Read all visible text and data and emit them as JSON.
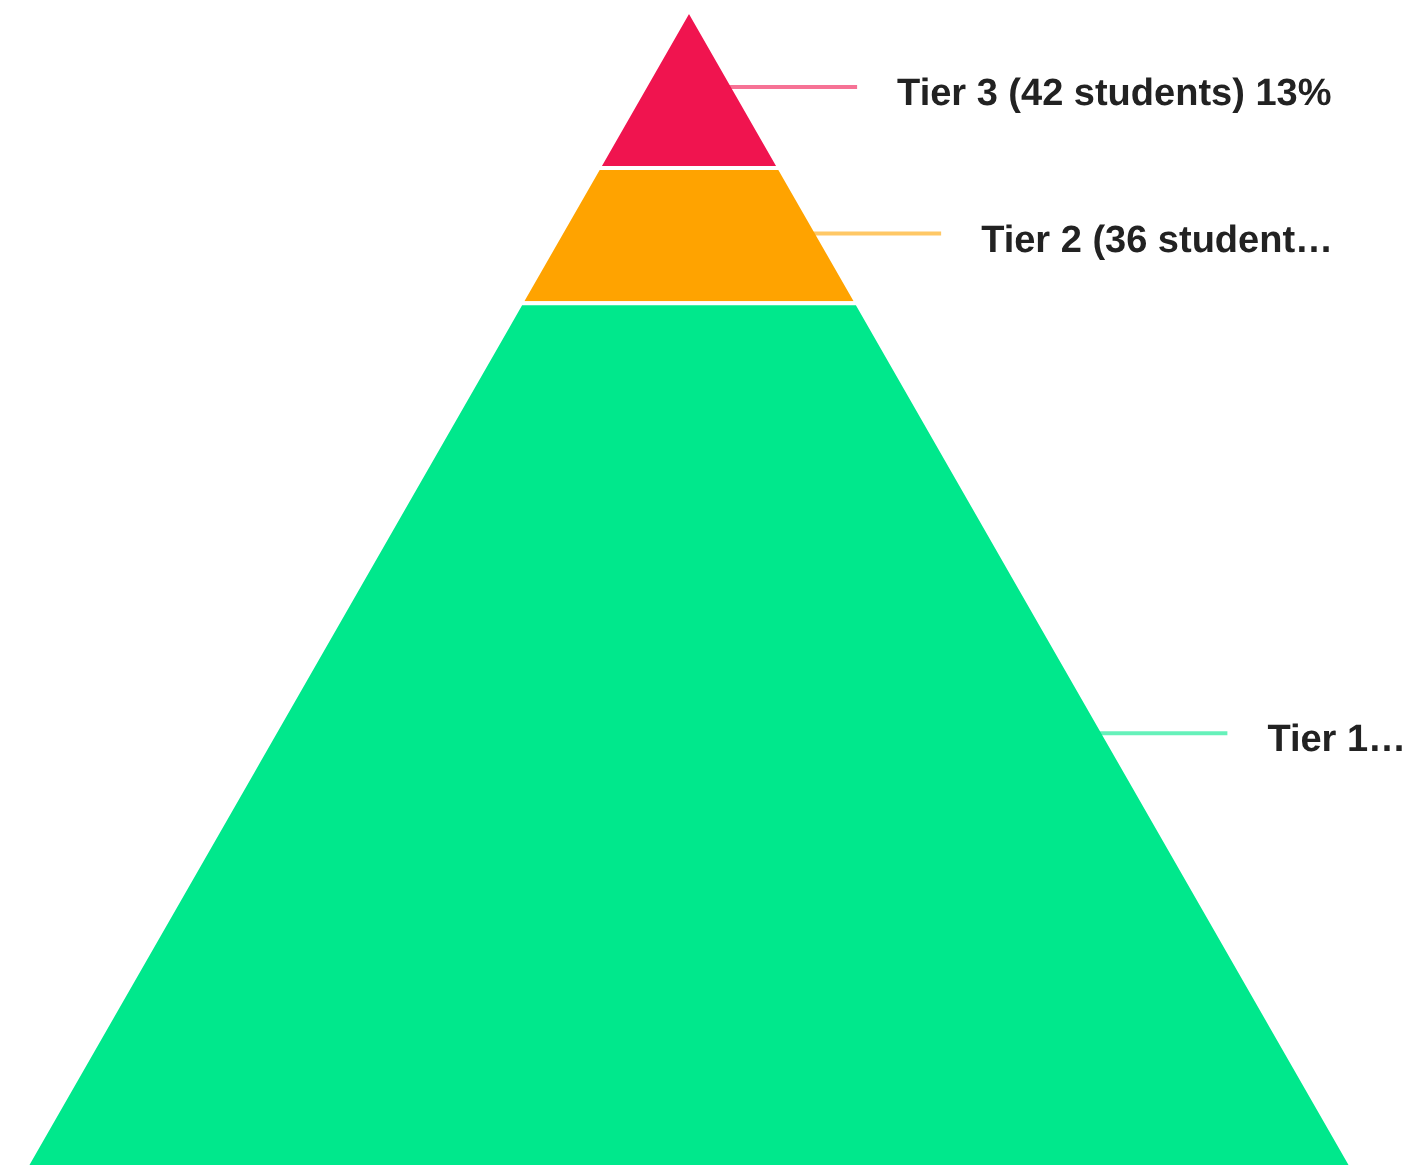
{
  "chart_data": {
    "type": "other",
    "categories": [
      "Tier 3",
      "Tier 2",
      "Tier 1…"
    ],
    "values": [
      42,
      36,
      null
    ],
    "value_labels": [
      "(42 students) 13%",
      "(36 student…",
      null
    ],
    "colors": [
      "#f0144f",
      "#ffa300",
      "#00e88c"
    ]
  }
}
